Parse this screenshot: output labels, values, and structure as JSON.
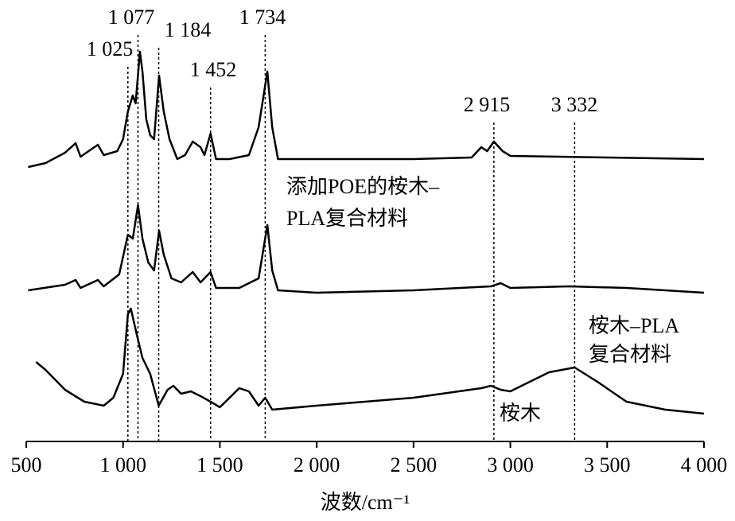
{
  "chart_data": {
    "type": "line",
    "xlabel": "波数/cm⁻¹",
    "xlim": [
      500,
      4000
    ],
    "ylim": [
      0,
      100
    ],
    "xticks": [
      500,
      {
        "value": 1000,
        "label": "1 000"
      },
      {
        "value": 1500,
        "label": "1 500"
      },
      {
        "value": 2000,
        "label": "2 000"
      },
      {
        "value": 2500,
        "label": "2 500"
      },
      {
        "value": 3000,
        "label": "3 000"
      },
      {
        "value": 3500,
        "label": "3 500"
      },
      {
        "value": 4000,
        "label": "4 000"
      }
    ],
    "annotations": [
      {
        "value": 1025,
        "label": "1 025"
      },
      {
        "value": 1077,
        "label": "1 077"
      },
      {
        "value": 1184,
        "label": "1 184"
      },
      {
        "value": 1452,
        "label": "1 452"
      },
      {
        "value": 1734,
        "label": "1 734"
      },
      {
        "value": 2915,
        "label": "2 915"
      },
      {
        "value": 3332,
        "label": "3 332"
      }
    ],
    "series": [
      {
        "name": [
          "添加POE的桉木–",
          "PLA复合材料"
        ],
        "color": "#000000",
        "x": [
          510,
          600,
          700,
          755,
          780,
          870,
          900,
          970,
          1000,
          1025,
          1050,
          1065,
          1087,
          1100,
          1120,
          1140,
          1160,
          1186,
          1210,
          1240,
          1280,
          1320,
          1360,
          1400,
          1420,
          1452,
          1480,
          1550,
          1650,
          1700,
          1745,
          1770,
          1800,
          2000,
          2500,
          2800,
          2850,
          2880,
          2915,
          2960,
          3000,
          3500,
          4000
        ],
        "values": [
          69,
          70,
          72.6,
          75,
          71.6,
          74.6,
          72,
          73,
          76,
          83,
          87,
          85,
          98,
          93,
          81,
          77,
          76,
          92,
          83,
          76,
          71,
          72,
          75.4,
          74,
          72,
          77.4,
          71,
          71,
          72,
          79,
          93,
          79,
          71,
          71,
          71,
          71.4,
          74,
          73,
          75.4,
          73,
          71.8,
          71.4,
          71
        ]
      },
      {
        "name": [
          "桉木–PLA",
          "复合材料"
        ],
        "color": "#000000",
        "x": [
          510,
          700,
          755,
          780,
          870,
          900,
          980,
          1025,
          1050,
          1077,
          1100,
          1130,
          1160,
          1186,
          1210,
          1250,
          1300,
          1360,
          1400,
          1452,
          1480,
          1600,
          1700,
          1745,
          1770,
          1800,
          2000,
          2500,
          2900,
          2950,
          3000,
          3300,
          3600,
          4000
        ],
        "values": [
          38,
          39.4,
          40.6,
          38.6,
          40.6,
          39,
          42,
          52,
          51,
          59.4,
          51,
          45,
          43,
          53,
          47,
          41,
          40,
          42.6,
          40,
          42.6,
          38.6,
          38.6,
          41,
          54.4,
          43,
          38,
          37.4,
          38,
          39,
          39.8,
          38.6,
          39,
          38.6,
          37.4
        ]
      },
      {
        "name": [
          "桉木"
        ],
        "color": "#000000",
        "x": [
          550,
          600,
          700,
          800,
          900,
          950,
          1000,
          1025,
          1040,
          1070,
          1100,
          1140,
          1184,
          1230,
          1260,
          1300,
          1350,
          1400,
          1452,
          1500,
          1550,
          1600,
          1650,
          1700,
          1734,
          1770,
          2000,
          2500,
          2850,
          2900,
          2950,
          3000,
          3100,
          3200,
          3332,
          3450,
          3600,
          3800,
          4000
        ],
        "values": [
          20,
          18,
          13,
          10,
          9,
          11,
          17,
          32,
          33.4,
          27,
          21,
          17,
          9,
          13,
          14,
          12,
          12.6,
          11.4,
          10,
          8.6,
          11,
          13.4,
          12.6,
          9,
          11,
          8,
          9,
          11,
          13.4,
          14,
          13,
          12.6,
          15,
          17.4,
          18.6,
          15,
          10,
          8,
          7
        ]
      }
    ]
  }
}
